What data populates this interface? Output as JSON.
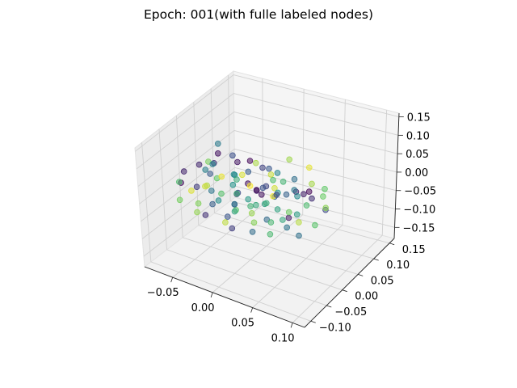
{
  "chart_data": {
    "type": "scatter",
    "projection": "3d",
    "title": "Epoch: 001(with fulle labeled nodes)",
    "xlabel": "",
    "ylabel": "",
    "zlabel": "",
    "grid": true,
    "colormap": "viridis",
    "marker_alpha": 0.55,
    "xlim": [
      -0.085,
      0.115
    ],
    "ylim": [
      -0.12,
      0.165
    ],
    "zlim": [
      -0.18,
      0.16
    ],
    "x_ticks": [
      {
        "value": -0.05,
        "label": "−0.05"
      },
      {
        "value": 0.0,
        "label": "0.00"
      },
      {
        "value": 0.05,
        "label": "0.05"
      },
      {
        "value": 0.1,
        "label": "0.10"
      }
    ],
    "y_ticks": [
      {
        "value": -0.1,
        "label": "−0.10"
      },
      {
        "value": -0.05,
        "label": "−0.05"
      },
      {
        "value": 0.0,
        "label": "0.00"
      },
      {
        "value": 0.05,
        "label": "0.05"
      },
      {
        "value": 0.1,
        "label": "0.10"
      },
      {
        "value": 0.15,
        "label": "0.15"
      }
    ],
    "z_ticks": [
      {
        "value": -0.15,
        "label": "−0.15"
      },
      {
        "value": -0.1,
        "label": "−0.10"
      },
      {
        "value": -0.05,
        "label": "−0.05"
      },
      {
        "value": 0.0,
        "label": "0.00"
      },
      {
        "value": 0.05,
        "label": "0.05"
      },
      {
        "value": 0.1,
        "label": "0.10"
      },
      {
        "value": 0.15,
        "label": "0.15"
      }
    ],
    "points": [
      [
        0.012,
        0.008,
        -0.003,
        0.05
      ],
      [
        -0.021,
        0.015,
        0.012,
        0.62
      ],
      [
        0.034,
        -0.012,
        0.021,
        0.98
      ],
      [
        -0.008,
        -0.025,
        -0.018,
        0.33
      ],
      [
        0.045,
        0.031,
        0.008,
        0.12
      ],
      [
        -0.035,
        0.002,
        -0.026,
        0.71
      ],
      [
        0.018,
        0.042,
        0.034,
        0.45
      ],
      [
        -0.044,
        -0.018,
        0.005,
        0.88
      ],
      [
        0.002,
        -0.038,
        0.029,
        0.23
      ],
      [
        0.027,
        0.019,
        -0.041,
        0.57
      ],
      [
        -0.016,
        0.036,
        -0.011,
        0.04
      ],
      [
        0.051,
        -0.006,
        -0.015,
        0.77
      ],
      [
        -0.029,
        -0.041,
        0.017,
        0.39
      ],
      [
        0.009,
        0.055,
        -0.022,
        0.93
      ],
      [
        -0.052,
        0.024,
        0.031,
        0.16
      ],
      [
        0.038,
        -0.029,
        -0.033,
        0.66
      ],
      [
        -0.005,
        0.011,
        0.046,
        0.29
      ],
      [
        0.022,
        -0.047,
        -0.006,
        0.84
      ],
      [
        -0.039,
        0.047,
        -0.037,
        0.51
      ],
      [
        0.061,
        0.014,
        0.024,
        0.09
      ],
      [
        -0.013,
        -0.009,
        -0.048,
        0.73
      ],
      [
        0.031,
        0.061,
        0.011,
        0.36
      ],
      [
        -0.058,
        -0.031,
        -0.009,
        0.95
      ],
      [
        0.006,
        0.027,
        0.052,
        0.19
      ],
      [
        0.043,
        -0.054,
        0.039,
        0.61
      ],
      [
        -0.024,
        0.063,
        0.026,
        0.02
      ],
      [
        0.014,
        -0.021,
        -0.055,
        0.81
      ],
      [
        -0.047,
        0.008,
        0.043,
        0.44
      ],
      [
        0.055,
        0.038,
        -0.027,
        0.68
      ],
      [
        -0.002,
        -0.061,
        -0.021,
        0.26
      ],
      [
        0.025,
        0.005,
        0.061,
        0.91
      ],
      [
        -0.033,
        -0.052,
        -0.044,
        0.14
      ],
      [
        0.068,
        -0.024,
        0.003,
        0.55
      ],
      [
        -0.066,
        0.041,
        0.014,
        0.79
      ],
      [
        0.017,
        0.071,
        -0.046,
        0.31
      ],
      [
        0.039,
        0.023,
        -0.059,
        0.07
      ],
      [
        -0.019,
        -0.034,
        0.057,
        0.97
      ],
      [
        -0.041,
        0.058,
        -0.019,
        0.48
      ],
      [
        0.049,
        -0.038,
        0.053,
        0.21
      ],
      [
        0.003,
        -0.004,
        -0.031,
        0.64
      ],
      [
        -0.011,
        0.049,
        0.038,
        0.87
      ],
      [
        0.029,
        -0.063,
        -0.039,
        0.35
      ],
      [
        -0.055,
        -0.012,
        0.051,
        0.11
      ],
      [
        0.072,
        0.051,
        0.017,
        0.74
      ],
      [
        -0.027,
        0.021,
        -0.063,
        0.42
      ],
      [
        0.011,
        -0.071,
        0.009,
        0.58
      ],
      [
        -0.063,
        -0.048,
        0.022,
        0.03
      ],
      [
        0.057,
        0.009,
        -0.049,
        0.89
      ],
      [
        -0.007,
        0.078,
        0.004,
        0.27
      ],
      [
        0.036,
        -0.016,
        0.068,
        0.69
      ],
      [
        -0.071,
        0.016,
        -0.041,
        0.17
      ],
      [
        0.021,
        0.035,
        -0.012,
        0.52
      ],
      [
        -0.037,
        -0.067,
        -0.028,
        0.83
      ],
      [
        0.064,
        -0.045,
        -0.018,
        0.38
      ],
      [
        -0.015,
        0.004,
        0.071,
        0.06
      ],
      [
        0.047,
        0.066,
        0.048,
        0.96
      ],
      [
        -0.049,
        0.072,
        0.019,
        0.24
      ],
      [
        0.008,
        -0.056,
        0.044,
        0.63
      ],
      [
        -0.031,
        0.031,
        0.008,
        0.47
      ],
      [
        0.078,
        -0.004,
        0.036,
        0.13
      ],
      [
        -0.076,
        -0.024,
        -0.052,
        0.78
      ],
      [
        0.016,
        0.013,
        -0.071,
        0.34
      ],
      [
        0.041,
        0.081,
        -0.031,
        0.01
      ],
      [
        -0.021,
        -0.078,
        0.061,
        0.92
      ],
      [
        0.032,
        -0.032,
        0.014,
        0.56
      ],
      [
        -0.059,
        0.054,
        0.058,
        0.41
      ],
      [
        0.069,
        0.029,
        -0.064,
        0.72
      ],
      [
        -0.004,
        -0.044,
        -0.066,
        0.18
      ],
      [
        0.026,
        0.058,
        0.063,
        0.85
      ],
      [
        -0.045,
        -0.005,
        0.027,
        0.28
      ],
      [
        0.053,
        -0.069,
        -0.025,
        0.67
      ],
      [
        -0.018,
        0.067,
        -0.054,
        0.08
      ],
      [
        0.001,
        0.001,
        0.019,
        0.99
      ],
      [
        -0.068,
        0.036,
        -0.006,
        0.43
      ],
      [
        0.085,
        0.021,
        -0.008,
        0.22
      ],
      [
        0.044,
        -0.008,
        -0.038,
        0.59
      ],
      [
        -0.028,
        -0.026,
        0.041,
        0.75
      ],
      [
        0.013,
        0.045,
        -0.035,
        0.32
      ],
      [
        -0.009,
        -0.015,
        0.002,
        0.15
      ],
      [
        0.059,
        0.044,
        0.028,
        0.86
      ],
      [
        -0.043,
        0.012,
        -0.057,
        0.49
      ],
      [
        0.024,
        -0.036,
        0.049,
        0.04
      ],
      [
        -0.061,
        -0.058,
        0.033,
        0.69
      ],
      [
        0.073,
        -0.031,
        -0.044,
        0.37
      ],
      [
        -0.036,
        0.068,
        -0.023,
        0.94
      ],
      [
        0.019,
        -0.005,
        0.029,
        0.25
      ],
      [
        -0.012,
        0.026,
        -0.044,
        0.53
      ],
      [
        0.091,
        0.006,
        0.012,
        0.82
      ],
      [
        -0.081,
        0.004,
        0.004,
        0.1
      ],
      [
        0.037,
        0.012,
        0.044,
        0.65
      ],
      [
        -0.025,
        -0.049,
        -0.011,
        0.3
      ],
      [
        0.066,
        0.061,
        -0.014,
        0.76
      ],
      [
        -0.053,
        0.039,
        0.046,
        0.05
      ],
      [
        0.004,
        -0.083,
        -0.016,
        0.9
      ],
      [
        0.048,
        0.027,
        0.001,
        0.46
      ],
      [
        -0.003,
        0.059,
        -0.027,
        0.2
      ],
      [
        0.029,
        -0.051,
        0.023,
        0.6
      ],
      [
        -0.048,
        -0.036,
        -0.034,
        0.8
      ],
      [
        0.062,
        -0.017,
        0.058,
        0.4
      ]
    ]
  }
}
